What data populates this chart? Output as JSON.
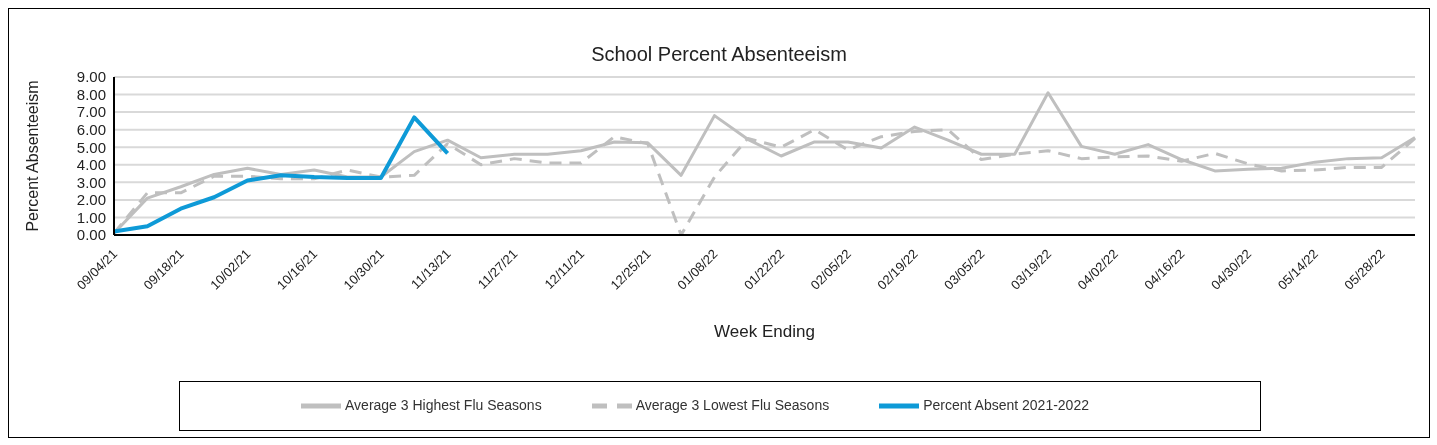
{
  "chart_data": {
    "type": "line",
    "title": "School  Percent Absenteeism",
    "xlabel": "Week Ending",
    "ylabel": "Percent Absenteeism",
    "categories": [
      "09/04/21",
      null,
      "09/18/21",
      null,
      "10/02/21",
      null,
      "10/16/21",
      null,
      "10/30/21",
      null,
      "11/13/21",
      null,
      "11/27/21",
      null,
      "12/11/21",
      null,
      "12/25/21",
      null,
      "01/08/22",
      null,
      "01/22/22",
      null,
      "02/05/22",
      null,
      "02/19/22",
      null,
      "03/05/22",
      null,
      "03/19/22",
      null,
      "04/02/22",
      null,
      "04/16/22",
      null,
      "04/30/22",
      null,
      "05/14/22",
      null,
      "05/28/22",
      null
    ],
    "series": [
      {
        "name": "Average 3 Highest Flu Seasons",
        "color": "#bfbfbf",
        "line_style": "solid",
        "values": [
          0.1,
          2.1,
          2.75,
          3.45,
          3.8,
          3.45,
          3.7,
          3.3,
          3.3,
          4.75,
          5.4,
          4.4,
          4.6,
          4.6,
          4.8,
          5.3,
          5.25,
          3.4,
          6.8,
          5.45,
          4.5,
          5.3,
          5.3,
          4.95,
          6.15,
          5.4,
          4.6,
          4.6,
          8.1,
          5.05,
          4.6,
          5.15,
          4.3,
          3.65,
          3.75,
          3.8,
          4.15,
          4.35,
          4.4,
          5.55
        ]
      },
      {
        "name": "Average 3 Lowest Flu Seasons",
        "color": "#bfbfbf",
        "line_style": "dashed",
        "values": [
          0.1,
          2.4,
          2.4,
          3.35,
          3.35,
          3.2,
          3.2,
          3.7,
          3.3,
          3.4,
          5.2,
          4.0,
          4.35,
          4.1,
          4.1,
          5.6,
          5.2,
          0.0,
          3.3,
          5.5,
          5.0,
          6.0,
          4.85,
          5.6,
          5.9,
          6.0,
          4.3,
          4.6,
          4.8,
          4.35,
          4.45,
          4.5,
          4.2,
          4.65,
          4.05,
          3.65,
          3.7,
          3.85,
          3.85,
          5.5
        ]
      },
      {
        "name": "Percent Absent 2021-2022",
        "color": "#0e9ad7",
        "line_style": "solid",
        "values": [
          0.2,
          0.5,
          1.5,
          2.15,
          3.1,
          3.4,
          3.3,
          3.25,
          3.25,
          6.7,
          4.65,
          null,
          null,
          null,
          null,
          null,
          null,
          null,
          null,
          null,
          null,
          null,
          null,
          null,
          null,
          null,
          null,
          null,
          null,
          null,
          null,
          null,
          null,
          null,
          null,
          null,
          null,
          null,
          null,
          null
        ]
      }
    ],
    "ylim": [
      0,
      9
    ],
    "yticks": [
      {
        "value": 0,
        "label": "0.00"
      },
      {
        "value": 1,
        "label": "1.00"
      },
      {
        "value": 2,
        "label": "2.00"
      },
      {
        "value": 3,
        "label": "3.00"
      },
      {
        "value": 4,
        "label": "4.00"
      },
      {
        "value": 5,
        "label": "5.00"
      },
      {
        "value": 6,
        "label": "6.00"
      },
      {
        "value": 7,
        "label": "7.00"
      },
      {
        "value": 8,
        "label": "8.00"
      },
      {
        "value": 9,
        "label": "9.00"
      }
    ],
    "grid": "y",
    "legend": "bottom",
    "marker": "none"
  }
}
